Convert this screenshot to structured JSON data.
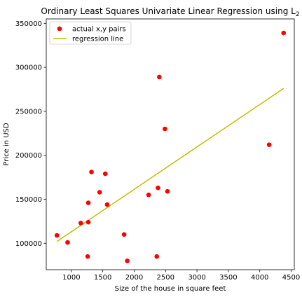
{
  "chart_data": {
    "type": "scatter",
    "title": "Ordinary Least Squares Univariate Linear Regression using L",
    "title_subscript": "2",
    "xlabel": "Size of the house in square feet",
    "ylabel": "Price in USD",
    "xlim": [
      600,
      4550
    ],
    "ylim": [
      70000,
      355000
    ],
    "xticks": [
      1000,
      1500,
      2000,
      2500,
      3000,
      3500,
      4000,
      4500
    ],
    "yticks": [
      100000,
      150000,
      200000,
      250000,
      300000,
      350000
    ],
    "xtick_labels": [
      "1000",
      "1500",
      "2000",
      "2500",
      "3000",
      "3500",
      "4000",
      "4500"
    ],
    "ytick_labels": [
      "100000",
      "150000",
      "200000",
      "250000",
      "300000",
      "350000"
    ],
    "grid": false,
    "legend_position": "upper-left",
    "series": [
      {
        "name": "actual x,y pairs",
        "kind": "scatter",
        "color": "#ff0000",
        "x": [
          770,
          940,
          1150,
          1260,
          1270,
          1270,
          1320,
          1450,
          1540,
          1570,
          1840,
          1890,
          2230,
          2360,
          2380,
          2400,
          2490,
          2530,
          4150,
          4380
        ],
        "y": [
          109000,
          101000,
          123000,
          85000,
          146000,
          124000,
          181000,
          158000,
          179000,
          144000,
          110000,
          80000,
          155000,
          85000,
          163000,
          289000,
          230000,
          159000,
          212000,
          339000
        ]
      },
      {
        "name": "regression line",
        "kind": "line",
        "color": "#bfbf00",
        "x": [
          770,
          4380
        ],
        "y": [
          102000,
          276000
        ]
      }
    ]
  }
}
